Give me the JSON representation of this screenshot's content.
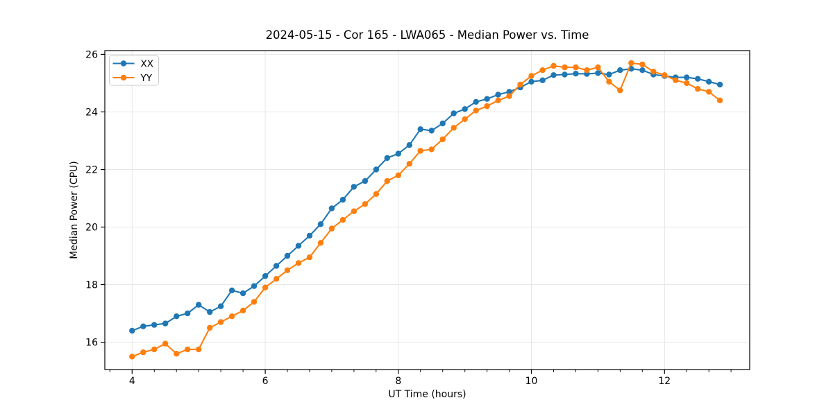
{
  "chart_data": {
    "type": "line",
    "title": "2024-05-15 - Cor 165 - LWA065 - Median Power vs. Time",
    "xlabel": "UT Time (hours)",
    "ylabel": "Median Power (CPU)",
    "x": [
      4.0,
      4.167,
      4.333,
      4.5,
      4.667,
      4.833,
      5.0,
      5.167,
      5.333,
      5.5,
      5.667,
      5.833,
      6.0,
      6.167,
      6.333,
      6.5,
      6.667,
      6.833,
      7.0,
      7.167,
      7.333,
      7.5,
      7.667,
      7.833,
      8.0,
      8.167,
      8.333,
      8.5,
      8.667,
      8.833,
      9.0,
      9.167,
      9.333,
      9.5,
      9.667,
      9.833,
      10.0,
      10.167,
      10.333,
      10.5,
      10.667,
      10.833,
      11.0,
      11.167,
      11.333,
      11.5,
      11.667,
      11.833,
      12.0,
      12.167,
      12.333,
      12.5,
      12.667,
      12.833
    ],
    "series": [
      {
        "name": "XX",
        "color": "#1f77b4",
        "marker": "circle",
        "values": [
          16.4,
          16.55,
          16.6,
          16.65,
          16.9,
          17.0,
          17.3,
          17.05,
          17.25,
          17.8,
          17.7,
          17.95,
          18.3,
          18.65,
          19.0,
          19.35,
          19.7,
          20.1,
          20.65,
          20.95,
          21.4,
          21.6,
          22.0,
          22.4,
          22.55,
          22.85,
          23.4,
          23.35,
          23.6,
          23.95,
          24.1,
          24.35,
          24.45,
          24.6,
          24.7,
          24.85,
          25.05,
          25.1,
          25.28,
          25.3,
          25.33,
          25.32,
          25.35,
          25.3,
          25.45,
          25.5,
          25.45,
          25.3,
          25.25,
          25.2,
          25.2,
          25.15,
          25.05,
          24.95
        ]
      },
      {
        "name": "YY",
        "color": "#ff7f0e",
        "marker": "circle",
        "values": [
          15.5,
          15.65,
          15.75,
          15.95,
          15.6,
          15.75,
          15.75,
          16.5,
          16.7,
          16.9,
          17.1,
          17.4,
          17.9,
          18.2,
          18.5,
          18.75,
          18.95,
          19.45,
          19.95,
          20.25,
          20.55,
          20.8,
          21.15,
          21.6,
          21.8,
          22.2,
          22.65,
          22.7,
          23.05,
          23.45,
          23.75,
          24.05,
          24.2,
          24.4,
          24.55,
          24.95,
          25.25,
          25.45,
          25.6,
          25.55,
          25.55,
          25.45,
          25.55,
          25.05,
          24.75,
          25.7,
          25.65,
          25.4,
          25.28,
          25.1,
          25.0,
          24.8,
          24.7,
          24.4
        ]
      }
    ],
    "xlim": [
      3.59,
      13.28
    ],
    "ylim": [
      15.05,
      26.13
    ],
    "x_major_ticks": [
      4,
      6,
      8,
      10,
      12
    ],
    "x_minor_tick_step": 0.33333,
    "y_major_ticks": [
      16,
      18,
      20,
      22,
      24,
      26
    ],
    "grid": true,
    "grid_color": "#e6e6e6",
    "axes_color": "#000000",
    "text_color": "#000000",
    "legend_position": "upper-left",
    "legend_entries": [
      "XX",
      "YY"
    ]
  }
}
